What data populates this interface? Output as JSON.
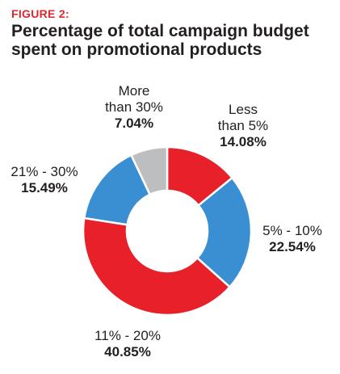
{
  "figure_label": "FIGURE 2:",
  "figure_label_color": "#e0262f",
  "title_line1": "Percentage of total campaign budget",
  "title_line2": "spent on promotional products",
  "chart_data": {
    "type": "pie",
    "donut": true,
    "title": "Percentage of total campaign budget spent on promotional products",
    "slices": [
      {
        "category_line1": "Less",
        "category_line2": "than 5%",
        "value": 14.08,
        "value_label": "14.08%",
        "color": "#e8202a"
      },
      {
        "category_line1": "5% - 10%",
        "category_line2": "",
        "value": 22.54,
        "value_label": "22.54%",
        "color": "#3a8fd3"
      },
      {
        "category_line1": "11% - 20%",
        "category_line2": "",
        "value": 40.85,
        "value_label": "40.85%",
        "color": "#e8202a"
      },
      {
        "category_line1": "21% - 30%",
        "category_line2": "",
        "value": 15.49,
        "value_label": "15.49%",
        "color": "#3a8fd3"
      },
      {
        "category_line1": "More",
        "category_line2": "than 30%",
        "value": 7.04,
        "value_label": "7.04%",
        "color": "#bcbec0"
      }
    ]
  }
}
